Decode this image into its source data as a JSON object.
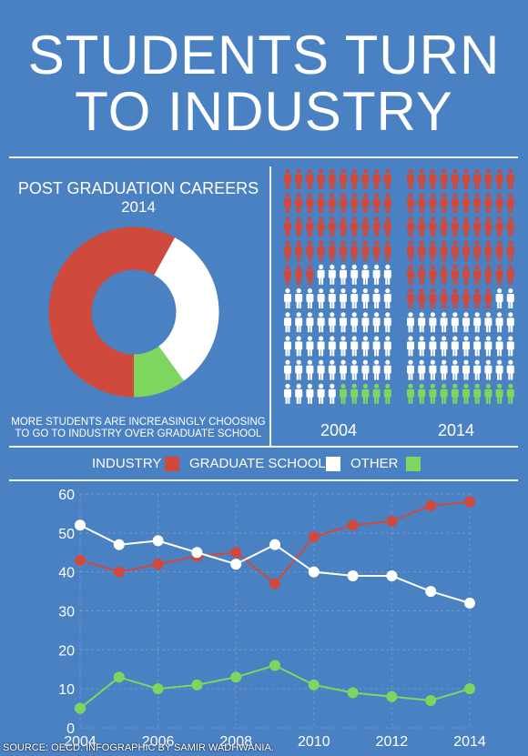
{
  "title": {
    "line1": "STUDENTS TURN",
    "line2": "TO INDUSTRY"
  },
  "colors": {
    "background": "#4a81c2",
    "industry": "#cf4a3d",
    "graduate_school": "#ffffff",
    "other": "#7fd65f"
  },
  "donut": {
    "title": "POST GRADUATION CAREERS",
    "year": "2014",
    "caption_line1": "MORE STUDENTS ARE INCREASINGLY CHOOSING",
    "caption_line2": "TO GO TO INDUSTRY OVER GRADUATE SCHOOL",
    "slices": [
      {
        "category": "INDUSTRY",
        "value": 58
      },
      {
        "category": "GRADUATE SCHOOL",
        "value": 32
      },
      {
        "category": "OTHER",
        "value": 10
      }
    ]
  },
  "pictograph": {
    "years": [
      "2004",
      "2014"
    ],
    "counts": [
      {
        "industry": 43,
        "graduate_school": 52,
        "other": 5
      },
      {
        "industry": 58,
        "graduate_school": 32,
        "other": 10
      }
    ]
  },
  "legend": {
    "industry": "INDUSTRY",
    "graduate_school": "GRADUATE SCHOOL",
    "other": "OTHER"
  },
  "chart_data": {
    "type": "line",
    "x": [
      2004,
      2005,
      2006,
      2007,
      2008,
      2009,
      2010,
      2011,
      2012,
      2013,
      2014
    ],
    "x_ticks": [
      "2004",
      "2006",
      "2008",
      "2010",
      "2012",
      "2014"
    ],
    "y_ticks": [
      "0",
      "10",
      "20",
      "30",
      "40",
      "50",
      "60"
    ],
    "ylim": [
      0,
      60
    ],
    "grid": true,
    "series": [
      {
        "name": "INDUSTRY",
        "color": "#cf4a3d",
        "values": [
          43,
          40,
          42,
          44,
          45,
          37,
          49,
          52,
          53,
          57,
          58
        ]
      },
      {
        "name": "GRADUATE SCHOOL",
        "color": "#ffffff",
        "values": [
          52,
          47,
          48,
          45,
          42,
          47,
          40,
          39,
          39,
          35,
          32
        ]
      },
      {
        "name": "OTHER",
        "color": "#7fd65f",
        "values": [
          5,
          13,
          10,
          11,
          13,
          16,
          11,
          9,
          8,
          7,
          10
        ]
      }
    ]
  },
  "source": "SOURCE: OECD. INFOGRAPHIC BY SAMIR WADHWANIA."
}
